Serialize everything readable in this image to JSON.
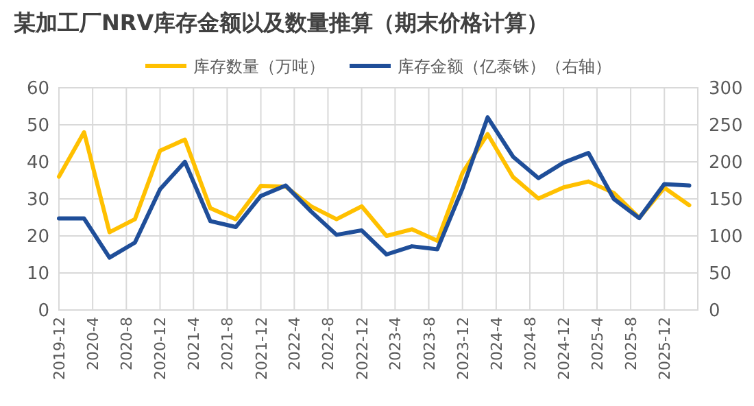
{
  "chart_data": {
    "type": "line",
    "title": "某加工厂NRV库存金额以及数量推算（期末价格计算）",
    "x": [
      "2019-12",
      "2020-03",
      "2020-06",
      "2020-09",
      "2020-12",
      "2021-03",
      "2021-06",
      "2021-09",
      "2021-12",
      "2022-03",
      "2022-06",
      "2022-09",
      "2022-12",
      "2023-03",
      "2023-06",
      "2023-09",
      "2023-12",
      "2024-03",
      "2024-06",
      "2024-09",
      "2024-12",
      "2025-03",
      "2025-06",
      "2025-09",
      "2025-12",
      "2026-03"
    ],
    "series": [
      {
        "name": "库存数量（万吨）",
        "color": "#ffc000",
        "values": [
          36,
          48,
          21,
          24.5,
          43,
          46,
          27.5,
          24.5,
          33.5,
          33.3,
          28,
          24.5,
          28,
          20,
          21.8,
          18.7,
          37,
          47.5,
          35.9,
          30.1,
          33.1,
          34.7,
          31.6,
          24.9,
          33,
          28.3
        ]
      },
      {
        "name": "库存金额（亿泰铢）（右轴）",
        "color": "#1f4e99",
        "axis": "y2",
        "values": [
          123.5,
          123.5,
          70.7,
          91,
          163,
          200,
          120,
          112,
          154,
          168,
          133,
          101.5,
          107.5,
          75,
          86,
          82,
          164,
          260,
          207,
          178,
          199,
          212,
          150,
          124,
          170,
          168
        ]
      }
    ],
    "xlim": [
      "2019-12",
      "2026-04"
    ],
    "xticks": [
      {
        "value": "2019-12",
        "label": "2019-12"
      },
      {
        "value": "2020-04",
        "label": "2020-4"
      },
      {
        "value": "2020-08",
        "label": "2020-8"
      },
      {
        "value": "2020-12",
        "label": "2020-12"
      },
      {
        "value": "2021-04",
        "label": "2021-4"
      },
      {
        "value": "2021-08",
        "label": "2021-8"
      },
      {
        "value": "2021-12",
        "label": "2021-12"
      },
      {
        "value": "2022-04",
        "label": "2022-4"
      },
      {
        "value": "2022-08",
        "label": "2022-8"
      },
      {
        "value": "2022-12",
        "label": "2022-12"
      },
      {
        "value": "2023-04",
        "label": "2023-4"
      },
      {
        "value": "2023-08",
        "label": "2023-8"
      },
      {
        "value": "2023-12",
        "label": "2023-12"
      },
      {
        "value": "2024-04",
        "label": "2024-4"
      },
      {
        "value": "2024-08",
        "label": "2024-8"
      },
      {
        "value": "2024-12",
        "label": "2024-12"
      },
      {
        "value": "2025-04",
        "label": "2025-4"
      },
      {
        "value": "2025-08",
        "label": "2025-8"
      },
      {
        "value": "2025-12",
        "label": "2025-12"
      }
    ],
    "ylim": [
      0,
      60
    ],
    "yticks": [
      0,
      10,
      20,
      30,
      40,
      50,
      60
    ],
    "y2lim": [
      0,
      300
    ],
    "y2ticks": [
      0,
      50,
      100,
      150,
      200,
      250,
      300
    ],
    "grid": true,
    "legend": "top",
    "marker": "none",
    "line_style": "solid"
  }
}
